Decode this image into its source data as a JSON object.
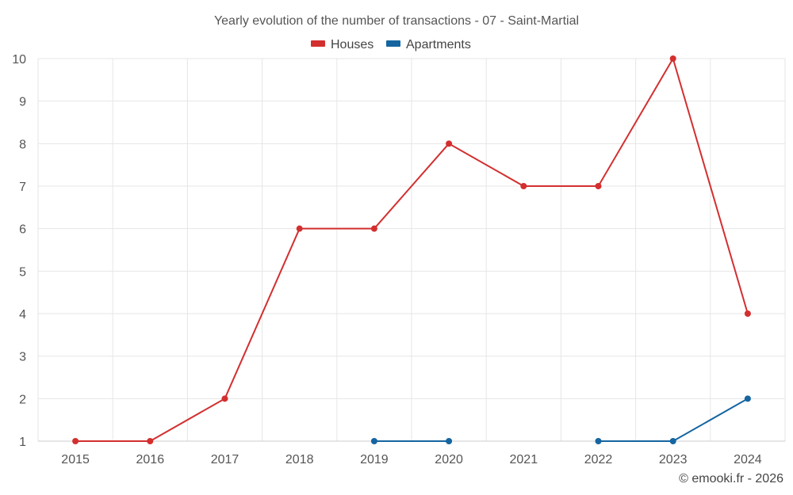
{
  "chart_data": {
    "type": "line",
    "title": "Yearly evolution of the number of transactions - 07 - Saint-Martial",
    "categories": [
      "2015",
      "2016",
      "2017",
      "2018",
      "2019",
      "2020",
      "2021",
      "2022",
      "2023",
      "2024"
    ],
    "series": [
      {
        "name": "Houses",
        "color": "#d32f2f",
        "values": [
          1,
          1,
          2,
          6,
          6,
          8,
          7,
          7,
          10,
          4
        ]
      },
      {
        "name": "Apartments",
        "color": "#1565a0",
        "values": [
          null,
          null,
          null,
          null,
          1,
          1,
          null,
          1,
          1,
          2
        ]
      }
    ],
    "ylim": [
      1,
      10
    ],
    "yticks": [
      1,
      2,
      3,
      4,
      5,
      6,
      7,
      8,
      9,
      10
    ],
    "xlabel": "",
    "ylabel": "",
    "legend_position": "top-center",
    "grid": true
  },
  "credit": "© emooki.fr - 2026"
}
